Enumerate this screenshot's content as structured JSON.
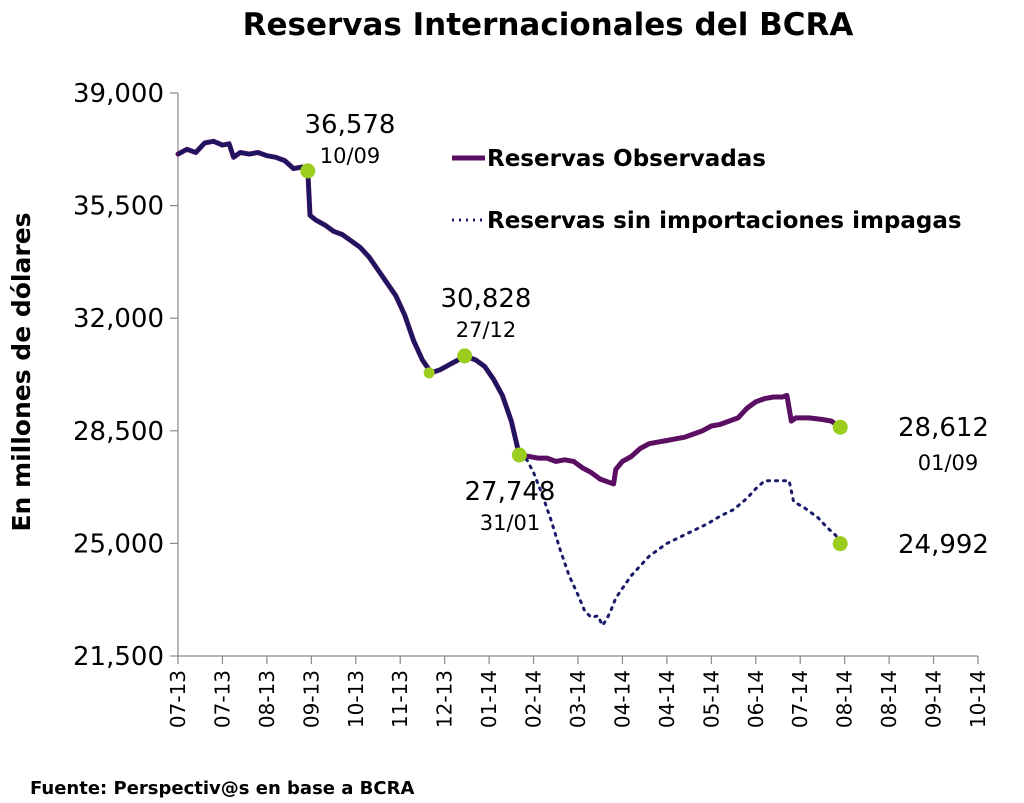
{
  "chart_data": {
    "type": "line",
    "title": "Reservas Internacionales del BCRA",
    "ylabel": "En millones de dólares",
    "xlabel": "",
    "ylim": [
      21500,
      39000
    ],
    "yticks": [
      "21,500",
      "25,000",
      "28,500",
      "32,000",
      "35,500",
      "39,000"
    ],
    "ytick_values": [
      21500,
      25000,
      28500,
      32000,
      35500,
      39000
    ],
    "x_tick_labels": [
      "07-13",
      "07-13",
      "08-13",
      "09-13",
      "10-13",
      "11-13",
      "12-13",
      "01-14",
      "02-14",
      "03-14",
      "04-14",
      "04-14",
      "05-14",
      "06-14",
      "07-14",
      "08-14",
      "08-14",
      "09-14",
      "10-14"
    ],
    "source": "Fuente: Perspectiv@s en base a BCRA",
    "series": [
      {
        "name": "Reservas Observadas",
        "color": "#5B0F63",
        "style": "solid",
        "points": [
          [
            0,
            37100
          ],
          [
            0.2,
            37250
          ],
          [
            0.4,
            37150
          ],
          [
            0.6,
            37450
          ],
          [
            0.8,
            37500
          ],
          [
            1.0,
            37380
          ],
          [
            1.15,
            37420
          ],
          [
            1.25,
            37000
          ],
          [
            1.4,
            37150
          ],
          [
            1.6,
            37100
          ],
          [
            1.8,
            37150
          ],
          [
            2.0,
            37050
          ],
          [
            2.2,
            37000
          ],
          [
            2.4,
            36900
          ],
          [
            2.6,
            36650
          ],
          [
            2.8,
            36700
          ],
          [
            2.92,
            36578
          ],
          [
            2.97,
            35200
          ],
          [
            3.1,
            35050
          ],
          [
            3.3,
            34900
          ],
          [
            3.5,
            34700
          ],
          [
            3.7,
            34600
          ],
          [
            3.9,
            34400
          ],
          [
            4.1,
            34200
          ],
          [
            4.3,
            33900
          ],
          [
            4.5,
            33500
          ],
          [
            4.7,
            33100
          ],
          [
            4.9,
            32700
          ],
          [
            5.1,
            32100
          ],
          [
            5.3,
            31300
          ],
          [
            5.5,
            30700
          ],
          [
            5.7,
            30300
          ],
          [
            5.9,
            30400
          ],
          [
            6.1,
            30550
          ],
          [
            6.3,
            30700
          ],
          [
            6.45,
            30828
          ],
          [
            6.7,
            30700
          ],
          [
            6.9,
            30500
          ],
          [
            7.1,
            30100
          ],
          [
            7.3,
            29600
          ],
          [
            7.5,
            28800
          ],
          [
            7.68,
            27748
          ],
          [
            7.9,
            27700
          ],
          [
            8.1,
            27650
          ],
          [
            8.3,
            27650
          ],
          [
            8.5,
            27550
          ],
          [
            8.7,
            27600
          ],
          [
            8.9,
            27550
          ],
          [
            9.1,
            27350
          ],
          [
            9.3,
            27200
          ],
          [
            9.5,
            27000
          ],
          [
            9.7,
            26900
          ],
          [
            9.8,
            26850
          ],
          [
            9.85,
            27300
          ],
          [
            10.0,
            27550
          ],
          [
            10.2,
            27700
          ],
          [
            10.4,
            27950
          ],
          [
            10.6,
            28100
          ],
          [
            10.8,
            28150
          ],
          [
            11.0,
            28200
          ],
          [
            11.2,
            28250
          ],
          [
            11.4,
            28300
          ],
          [
            11.6,
            28400
          ],
          [
            11.8,
            28500
          ],
          [
            12.0,
            28650
          ],
          [
            12.2,
            28700
          ],
          [
            12.4,
            28800
          ],
          [
            12.6,
            28900
          ],
          [
            12.8,
            29200
          ],
          [
            13.0,
            29400
          ],
          [
            13.2,
            29500
          ],
          [
            13.4,
            29550
          ],
          [
            13.6,
            29550
          ],
          [
            13.7,
            29600
          ],
          [
            13.8,
            28800
          ],
          [
            13.9,
            28900
          ],
          [
            14.2,
            28900
          ],
          [
            14.5,
            28850
          ],
          [
            14.7,
            28800
          ],
          [
            14.9,
            28612
          ]
        ]
      },
      {
        "name": "Reservas sin importaciones impagas",
        "color": "#1A1A6B",
        "style": "dotted",
        "points": [
          [
            7.68,
            27748
          ],
          [
            7.85,
            27600
          ],
          [
            8.0,
            27200
          ],
          [
            8.2,
            26500
          ],
          [
            8.4,
            25700
          ],
          [
            8.6,
            24800
          ],
          [
            8.8,
            24000
          ],
          [
            9.0,
            23400
          ],
          [
            9.15,
            22900
          ],
          [
            9.3,
            22700
          ],
          [
            9.45,
            22750
          ],
          [
            9.55,
            22450
          ],
          [
            9.65,
            22650
          ],
          [
            9.75,
            22950
          ],
          [
            9.85,
            23300
          ],
          [
            10.0,
            23600
          ],
          [
            10.2,
            24000
          ],
          [
            10.4,
            24300
          ],
          [
            10.6,
            24600
          ],
          [
            10.8,
            24800
          ],
          [
            11.0,
            25000
          ],
          [
            11.3,
            25200
          ],
          [
            11.6,
            25400
          ],
          [
            11.9,
            25600
          ],
          [
            12.2,
            25850
          ],
          [
            12.5,
            26050
          ],
          [
            12.8,
            26400
          ],
          [
            13.0,
            26700
          ],
          [
            13.2,
            26950
          ],
          [
            13.4,
            26950
          ],
          [
            13.6,
            26950
          ],
          [
            13.75,
            26950
          ],
          [
            13.85,
            26300
          ],
          [
            14.1,
            26100
          ],
          [
            14.4,
            25800
          ],
          [
            14.6,
            25500
          ],
          [
            14.8,
            25250
          ],
          [
            14.9,
            24992
          ]
        ]
      }
    ],
    "annotations": [
      {
        "value": "36,578",
        "date": "10/09",
        "x": 2.92,
        "y": 36578
      },
      {
        "value": "30,828",
        "date": "27/12",
        "x": 6.45,
        "y": 30828
      },
      {
        "value": "27,748",
        "date": "31/01",
        "x": 7.68,
        "y": 27748
      },
      {
        "value": "28,612",
        "date": "01/09",
        "x": 14.9,
        "y": 28612
      },
      {
        "value": "24,992",
        "date": "",
        "x": 14.9,
        "y": 24992
      }
    ],
    "extra_markers": [
      {
        "x": 5.65,
        "y": 30300
      }
    ],
    "marker_color": "#9ACD1E"
  }
}
